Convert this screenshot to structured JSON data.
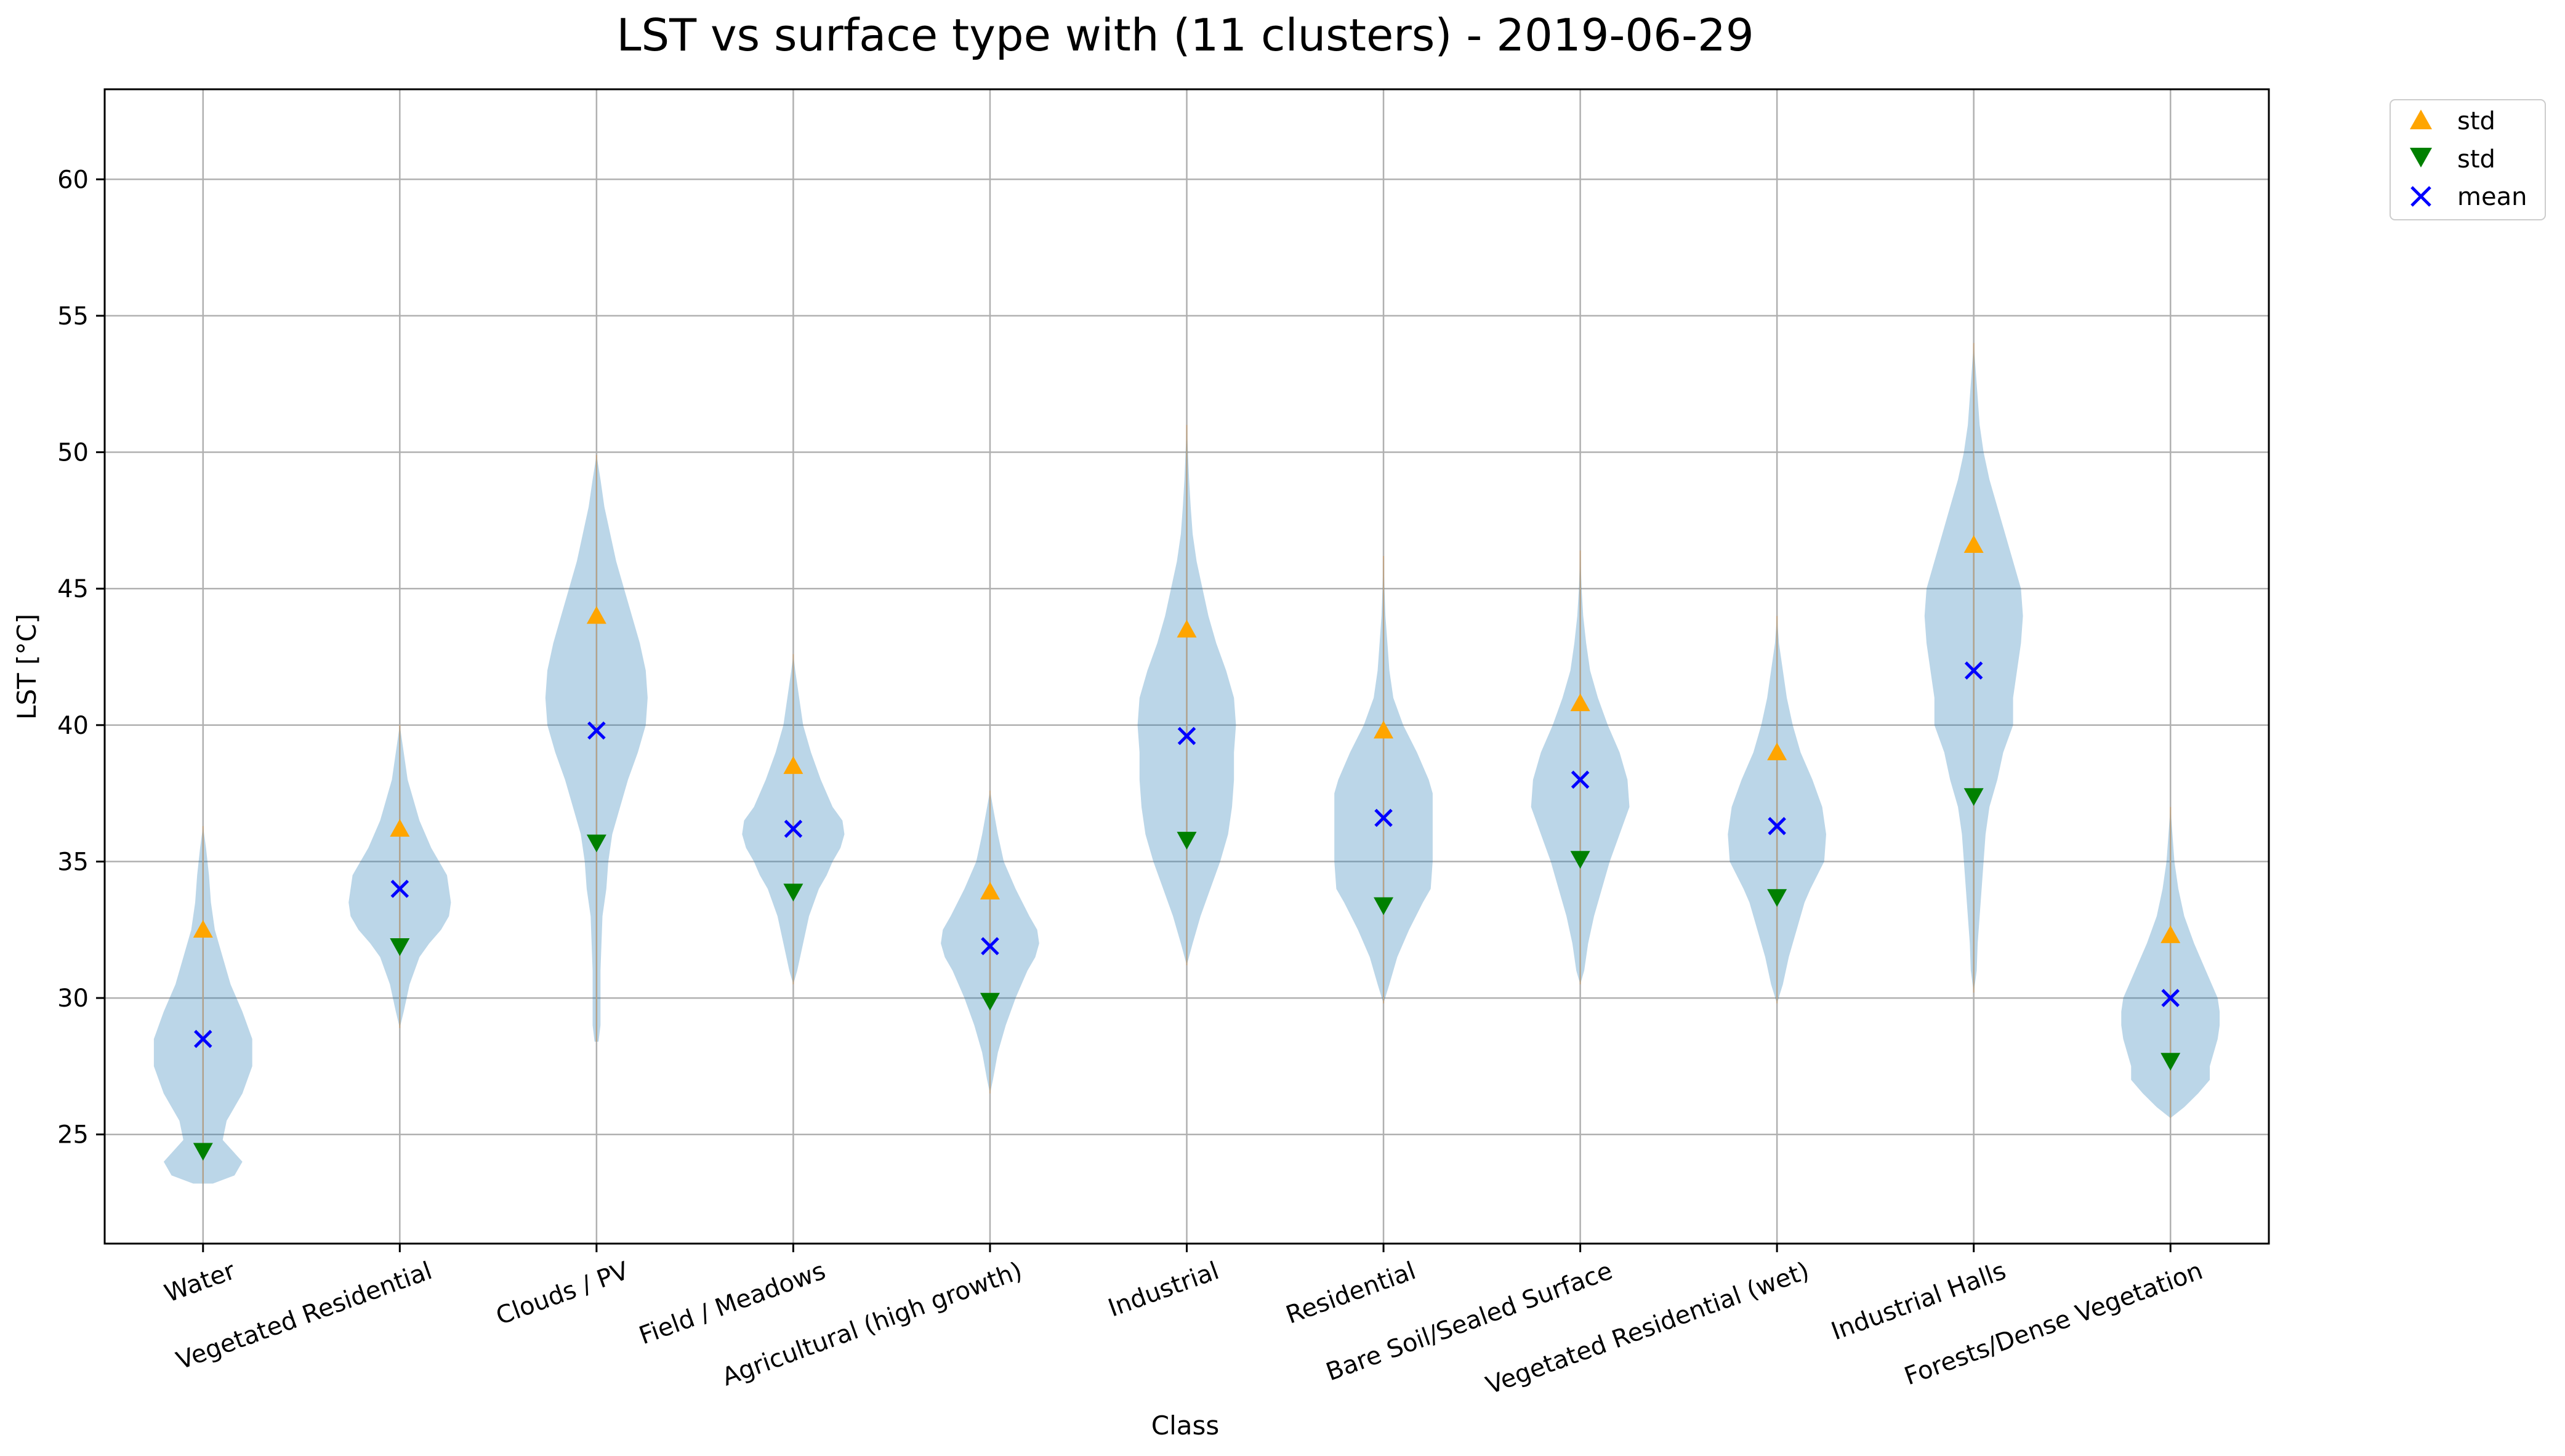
{
  "chart_data": {
    "type": "violin",
    "title": "LST vs surface type with (11 clusters) - 2019-06-29",
    "xlabel": "Class",
    "ylabel": "LST [°C]",
    "ylim": [
      21,
      63.3
    ],
    "yticks": [
      25,
      30,
      35,
      40,
      45,
      50,
      55,
      60
    ],
    "grid": true,
    "legend_position": "outside-top-right",
    "categories": [
      "Water",
      "Vegetated Residential",
      "Clouds / PV",
      "Field / Meadows",
      "Agricultural (high growth)",
      "Industrial",
      "Residential",
      "Bare Soil/Sealed Surface",
      "Vegetated Residential (wet)",
      "Industrial Halls",
      "Forests/Dense Vegetation"
    ],
    "series": [
      {
        "name": "std",
        "marker": "triangle-up",
        "color": "#FFA500",
        "values": [
          32.5,
          36.2,
          44.0,
          38.5,
          33.9,
          43.5,
          39.8,
          40.8,
          39.0,
          46.6,
          32.3
        ]
      },
      {
        "name": "std",
        "marker": "triangle-down",
        "color": "#008000",
        "values": [
          24.4,
          31.9,
          35.7,
          33.9,
          29.9,
          35.8,
          33.4,
          35.1,
          33.7,
          37.4,
          27.7
        ]
      },
      {
        "name": "mean",
        "marker": "x",
        "color": "#0000FF",
        "values": [
          28.5,
          34.0,
          39.8,
          36.2,
          31.9,
          39.6,
          36.6,
          38.0,
          36.3,
          42.0,
          30.0
        ]
      }
    ],
    "violins": [
      {
        "y": [
          23.2,
          23.5,
          24.0,
          24.8,
          25.5,
          26.5,
          27.5,
          28.5,
          29.5,
          30.5,
          31.5,
          32.5,
          33.5,
          34.5,
          35.5,
          36.3
        ],
        "w": [
          0.05,
          0.16,
          0.2,
          0.1,
          0.12,
          0.2,
          0.25,
          0.25,
          0.2,
          0.14,
          0.1,
          0.06,
          0.04,
          0.03,
          0.015,
          0.0
        ]
      },
      {
        "y": [
          28.9,
          29.5,
          30.5,
          31.5,
          32.0,
          32.5,
          33.0,
          33.5,
          34.0,
          34.5,
          35.0,
          35.5,
          36.0,
          36.5,
          37.0,
          37.5,
          38.0,
          38.5,
          39.0,
          39.5,
          40.0
        ],
        "w": [
          0.0,
          0.02,
          0.05,
          0.1,
          0.15,
          0.21,
          0.25,
          0.26,
          0.25,
          0.24,
          0.2,
          0.16,
          0.13,
          0.1,
          0.08,
          0.06,
          0.04,
          0.03,
          0.02,
          0.01,
          0.0
        ]
      },
      {
        "y": [
          28.4,
          29.0,
          30.0,
          31.0,
          32.0,
          33.0,
          34.0,
          35.0,
          36.0,
          37.0,
          38.0,
          39.0,
          40.0,
          41.0,
          42.0,
          43.0,
          44.0,
          45.0,
          46.0,
          47.0,
          48.0,
          49.0,
          49.9
        ],
        "w": [
          0.01,
          0.02,
          0.02,
          0.02,
          0.025,
          0.03,
          0.05,
          0.06,
          0.08,
          0.12,
          0.16,
          0.21,
          0.25,
          0.26,
          0.25,
          0.22,
          0.18,
          0.14,
          0.1,
          0.07,
          0.04,
          0.02,
          0.0
        ]
      },
      {
        "y": [
          30.5,
          31.0,
          32.0,
          33.0,
          34.0,
          34.5,
          35.0,
          35.5,
          36.0,
          36.5,
          37.0,
          38.0,
          39.0,
          40.0,
          41.0,
          42.0,
          42.6
        ],
        "w": [
          0.0,
          0.02,
          0.05,
          0.08,
          0.13,
          0.17,
          0.2,
          0.24,
          0.26,
          0.25,
          0.2,
          0.14,
          0.09,
          0.05,
          0.03,
          0.01,
          0.0
        ]
      },
      {
        "y": [
          26.5,
          27.0,
          28.0,
          29.0,
          30.0,
          31.0,
          31.5,
          32.0,
          32.5,
          33.0,
          34.0,
          35.0,
          36.0,
          37.0,
          37.6
        ],
        "w": [
          0.0,
          0.015,
          0.04,
          0.08,
          0.13,
          0.19,
          0.23,
          0.25,
          0.24,
          0.2,
          0.13,
          0.07,
          0.04,
          0.015,
          0.0
        ]
      },
      {
        "y": [
          31.2,
          32.0,
          33.0,
          34.0,
          35.0,
          36.0,
          37.0,
          38.0,
          39.0,
          40.0,
          41.0,
          42.0,
          43.0,
          44.0,
          45.0,
          46.0,
          47.0,
          48.0,
          49.0,
          50.0,
          51.0
        ],
        "w": [
          0.0,
          0.03,
          0.07,
          0.12,
          0.17,
          0.21,
          0.23,
          0.24,
          0.24,
          0.25,
          0.24,
          0.2,
          0.15,
          0.11,
          0.08,
          0.05,
          0.03,
          0.02,
          0.012,
          0.006,
          0.0
        ]
      },
      {
        "y": [
          29.8,
          30.5,
          31.5,
          32.5,
          33.5,
          34.0,
          35.0,
          36.0,
          37.0,
          37.5,
          38.0,
          39.0,
          40.0,
          41.0,
          42.0,
          43.0,
          44.0,
          45.0,
          46.2
        ],
        "w": [
          0.0,
          0.03,
          0.07,
          0.13,
          0.2,
          0.24,
          0.25,
          0.25,
          0.25,
          0.25,
          0.23,
          0.17,
          0.1,
          0.05,
          0.03,
          0.02,
          0.01,
          0.005,
          0.0
        ]
      },
      {
        "y": [
          30.5,
          31.0,
          32.0,
          33.0,
          34.0,
          35.0,
          36.0,
          37.0,
          38.0,
          39.0,
          40.0,
          41.0,
          42.0,
          43.0,
          44.0,
          45.0,
          46.4
        ],
        "w": [
          0.0,
          0.02,
          0.04,
          0.07,
          0.11,
          0.15,
          0.2,
          0.25,
          0.24,
          0.2,
          0.14,
          0.09,
          0.05,
          0.03,
          0.015,
          0.007,
          0.0
        ]
      },
      {
        "y": [
          29.8,
          30.5,
          31.5,
          32.5,
          33.5,
          34.0,
          35.0,
          36.0,
          37.0,
          38.0,
          39.0,
          40.0,
          41.0,
          42.0,
          43.0,
          44.0
        ],
        "w": [
          0.0,
          0.03,
          0.06,
          0.1,
          0.14,
          0.17,
          0.24,
          0.25,
          0.23,
          0.18,
          0.12,
          0.08,
          0.05,
          0.03,
          0.01,
          0.0
        ]
      },
      {
        "y": [
          30.2,
          31.0,
          32.0,
          33.0,
          34.0,
          35.0,
          36.0,
          37.0,
          38.0,
          39.0,
          40.0,
          41.0,
          42.0,
          43.0,
          44.0,
          45.0,
          46.0,
          47.0,
          48.0,
          49.0,
          50.0,
          51.0,
          52.0,
          53.0,
          54.0
        ],
        "w": [
          0.0,
          0.015,
          0.02,
          0.03,
          0.04,
          0.05,
          0.06,
          0.08,
          0.12,
          0.15,
          0.2,
          0.2,
          0.22,
          0.24,
          0.25,
          0.24,
          0.2,
          0.16,
          0.12,
          0.08,
          0.05,
          0.03,
          0.02,
          0.01,
          0.0
        ]
      },
      {
        "y": [
          25.6,
          26.0,
          26.5,
          27.0,
          27.5,
          28.0,
          28.5,
          29.0,
          29.5,
          30.0,
          31.0,
          32.0,
          33.0,
          34.0,
          35.0,
          36.0,
          37.0
        ],
        "w": [
          0.0,
          0.07,
          0.14,
          0.2,
          0.2,
          0.22,
          0.24,
          0.25,
          0.25,
          0.24,
          0.18,
          0.12,
          0.07,
          0.04,
          0.02,
          0.01,
          0.0
        ]
      }
    ]
  }
}
